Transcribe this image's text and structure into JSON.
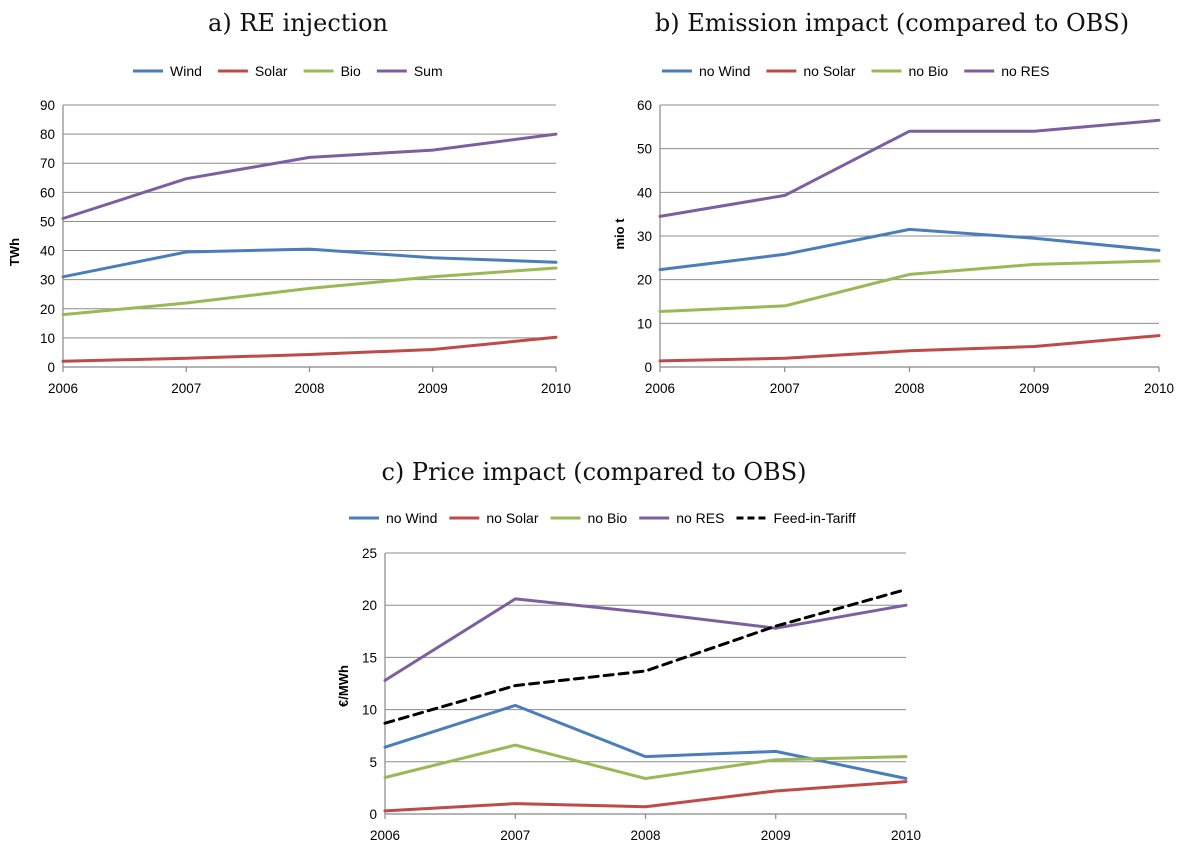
{
  "chart_data": [
    {
      "type": "line",
      "title": "a) RE injection",
      "xlabel": "",
      "ylabel": "TWh",
      "x": [
        "2006",
        "2007",
        "2008",
        "2009",
        "2010"
      ],
      "ylim": [
        0,
        90
      ],
      "yticks": [
        0,
        10,
        20,
        30,
        40,
        50,
        60,
        70,
        80,
        90
      ],
      "grid": true,
      "legend_position": "top",
      "series": [
        {
          "name": "Wind",
          "color": "#4a7ebb",
          "dashed": false,
          "values": [
            31,
            39.5,
            40.5,
            37.5,
            36
          ]
        },
        {
          "name": "Solar",
          "color": "#be4b48",
          "dashed": false,
          "values": [
            2,
            3,
            4.3,
            6,
            10.2
          ]
        },
        {
          "name": "Bio",
          "color": "#98b954",
          "dashed": false,
          "values": [
            18,
            22,
            27,
            31,
            34
          ]
        },
        {
          "name": "Sum",
          "color": "#7d5fa0",
          "dashed": false,
          "values": [
            51,
            64.7,
            72,
            74.5,
            80
          ]
        }
      ]
    },
    {
      "type": "line",
      "title": "b) Emission impact (compared to OBS)",
      "xlabel": "",
      "ylabel": "mio t",
      "x": [
        "2006",
        "2007",
        "2008",
        "2009",
        "2010"
      ],
      "ylim": [
        0,
        60
      ],
      "yticks": [
        0,
        10,
        20,
        30,
        40,
        50,
        60
      ],
      "grid": true,
      "legend_position": "top",
      "series": [
        {
          "name": "no Wind",
          "color": "#4a7ebb",
          "dashed": false,
          "values": [
            22.3,
            25.8,
            31.5,
            29.5,
            26.7
          ]
        },
        {
          "name": "no Solar",
          "color": "#be4b48",
          "dashed": false,
          "values": [
            1.4,
            2,
            3.7,
            4.7,
            7.2
          ]
        },
        {
          "name": "no Bio",
          "color": "#98b954",
          "dashed": false,
          "values": [
            12.7,
            14,
            21.2,
            23.5,
            24.3
          ]
        },
        {
          "name": "no RES",
          "color": "#7d5fa0",
          "dashed": false,
          "values": [
            34.5,
            39.3,
            54,
            54,
            56.5
          ]
        }
      ]
    },
    {
      "type": "line",
      "title": "c) Price impact (compared to OBS)",
      "xlabel": "",
      "ylabel": "€/MWh",
      "x": [
        "2006",
        "2007",
        "2008",
        "2009",
        "2010"
      ],
      "ylim": [
        0,
        25
      ],
      "yticks": [
        0,
        5,
        10,
        15,
        20,
        25
      ],
      "grid": true,
      "legend_position": "top",
      "series": [
        {
          "name": "no Wind",
          "color": "#4a7ebb",
          "dashed": false,
          "values": [
            6.4,
            10.4,
            5.5,
            6,
            3.4
          ]
        },
        {
          "name": "no Solar",
          "color": "#be4b48",
          "dashed": false,
          "values": [
            0.3,
            1,
            0.7,
            2.2,
            3.1
          ]
        },
        {
          "name": "no Bio",
          "color": "#98b954",
          "dashed": false,
          "values": [
            3.5,
            6.6,
            3.4,
            5.2,
            5.5
          ]
        },
        {
          "name": "no RES",
          "color": "#7d5fa0",
          "dashed": false,
          "values": [
            12.8,
            20.6,
            19.3,
            17.8,
            20
          ]
        },
        {
          "name": "Feed-in-Tariff",
          "color": "#000000",
          "dashed": true,
          "values": [
            8.7,
            12.3,
            13.7,
            18,
            21.5
          ]
        }
      ]
    }
  ]
}
